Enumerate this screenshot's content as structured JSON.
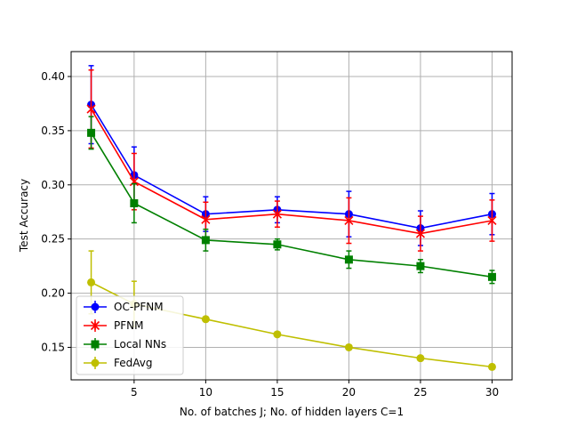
{
  "chart_data": {
    "type": "line",
    "title": "",
    "xlabel": "No. of batches J; No. of hidden layers C=1",
    "ylabel": "Test Accuracy",
    "xlim": [
      0.6,
      31.4
    ],
    "ylim": [
      0.12,
      0.423
    ],
    "xticks": [
      5,
      10,
      15,
      20,
      25,
      30
    ],
    "yticks": [
      0.15,
      0.2,
      0.25,
      0.3,
      0.35,
      0.4
    ],
    "ytick_labels": [
      "0.15",
      "0.20",
      "0.25",
      "0.30",
      "0.35",
      "0.40"
    ],
    "grid": true,
    "legend_position": "lower-left",
    "x": [
      2,
      5,
      10,
      15,
      20,
      25,
      30
    ],
    "series": [
      {
        "name": "OC-PFNM",
        "color": "#0000ff",
        "marker": "circle",
        "values": [
          0.374,
          0.309,
          0.273,
          0.277,
          0.273,
          0.26,
          0.273
        ],
        "errors": [
          0.036,
          0.026,
          0.016,
          0.012,
          0.021,
          0.016,
          0.019
        ]
      },
      {
        "name": "PFNM",
        "color": "#ff0000",
        "marker": "x-star",
        "values": [
          0.37,
          0.303,
          0.268,
          0.273,
          0.267,
          0.255,
          0.267
        ],
        "errors": [
          0.036,
          0.026,
          0.016,
          0.012,
          0.021,
          0.016,
          0.019
        ]
      },
      {
        "name": "Local NNs",
        "color": "#008000",
        "marker": "square",
        "values": [
          0.348,
          0.283,
          0.249,
          0.245,
          0.231,
          0.225,
          0.215
        ],
        "errors": [
          0.015,
          0.018,
          0.01,
          0.005,
          0.008,
          0.006,
          0.006
        ]
      },
      {
        "name": "FedAvg",
        "color": "#bfbf00",
        "marker": "circle",
        "values": [
          0.21,
          0.19,
          0.176,
          0.162,
          0.15,
          0.14,
          0.132
        ],
        "errors": [
          0.029,
          0.021,
          0.0,
          0.0,
          0.0,
          0.0,
          0.0
        ]
      }
    ]
  }
}
